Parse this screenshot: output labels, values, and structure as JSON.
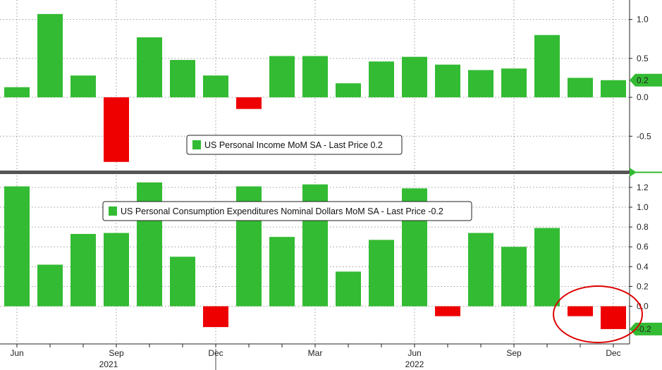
{
  "colors": {
    "positive": "#33bb33",
    "negative": "#ee0000",
    "highlight_ring": "#dd0000",
    "grid": "#9a9a9a",
    "divider": "#555555",
    "accent_axis": "#33bb33"
  },
  "x_axis": {
    "month_labels": [
      "Jun",
      "Sep",
      "Dec",
      "Mar",
      "Jun",
      "Sep",
      "Dec"
    ],
    "year_labels": [
      "2021",
      "2022"
    ]
  },
  "chart_data": [
    {
      "type": "bar",
      "legend": "US Personal Income MoM SA - Last Price 0.2",
      "categories": [
        "Jun 2021",
        "Jul 2021",
        "Aug 2021",
        "Sep 2021",
        "Oct 2021",
        "Nov 2021",
        "Dec 2021",
        "Jan 2022",
        "Feb 2022",
        "Mar 2022",
        "Apr 2022",
        "May 2022",
        "Jun 2022",
        "Jul 2022",
        "Aug 2022",
        "Sep 2022",
        "Oct 2022",
        "Nov 2022",
        "Dec 2022"
      ],
      "values": [
        0.13,
        1.07,
        0.28,
        -0.83,
        0.77,
        0.48,
        0.28,
        -0.15,
        0.53,
        0.53,
        0.18,
        0.46,
        0.52,
        0.42,
        0.35,
        0.37,
        0.8,
        0.25,
        0.22
      ],
      "ylim": [
        -0.95,
        1.25
      ],
      "ticks": [
        -0.5,
        0.0,
        0.5,
        1.0
      ],
      "tick_labels": [
        "-0.5",
        "0.0",
        "0.5",
        "1.0"
      ],
      "last_value_label": "0.2",
      "grid": true
    },
    {
      "type": "bar",
      "legend": "US Personal Consumption Expenditures Nominal Dollars MoM SA - Last Price -0.2",
      "categories": [
        "Jun 2021",
        "Jul 2021",
        "Aug 2021",
        "Sep 2021",
        "Oct 2021",
        "Nov 2021",
        "Dec 2021",
        "Jan 2022",
        "Feb 2022",
        "Mar 2022",
        "Apr 2022",
        "May 2022",
        "Jun 2022",
        "Jul 2022",
        "Aug 2022",
        "Sep 2022",
        "Oct 2022",
        "Nov 2022",
        "Dec 2022"
      ],
      "values": [
        1.21,
        0.42,
        0.73,
        0.74,
        1.25,
        0.5,
        -0.21,
        1.21,
        0.7,
        1.23,
        0.35,
        0.67,
        1.19,
        -0.1,
        0.74,
        0.6,
        0.79,
        -0.1,
        -0.23
      ],
      "ylim": [
        -0.38,
        1.32
      ],
      "ticks": [
        0.0,
        0.2,
        0.4,
        0.6,
        0.8,
        1.0,
        1.2
      ],
      "tick_labels": [
        "0.0",
        "0.2",
        "0.4",
        "0.6",
        "0.8",
        "1.0",
        "1.2"
      ],
      "last_value_label": "-0.2",
      "grid": true
    }
  ]
}
